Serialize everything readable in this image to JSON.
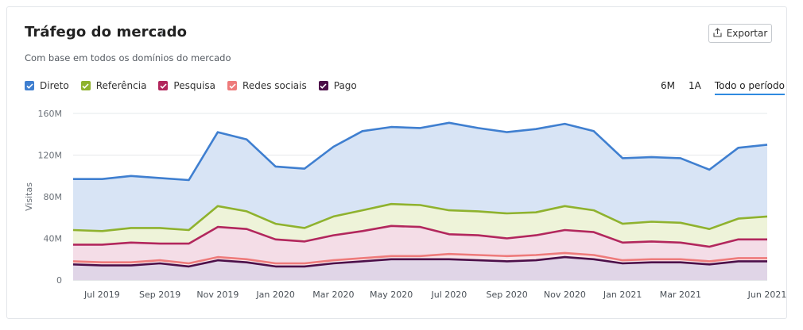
{
  "header": {
    "title": "Tráfego do mercado",
    "info_icon": "i",
    "subtitle": "Com base em todos os domínios do mercado",
    "export_label": "Exportar"
  },
  "legend": [
    {
      "label": "Direto",
      "color": "#3f7fd0"
    },
    {
      "label": "Referência",
      "color": "#8fb22e"
    },
    {
      "label": "Pesquisa",
      "color": "#b2275d"
    },
    {
      "label": "Redes sociais",
      "color": "#ee7b7b"
    },
    {
      "label": "Pago",
      "color": "#4c0f49"
    }
  ],
  "periods": {
    "p6m": "6M",
    "p1a": "1A",
    "all": "Todo o período"
  },
  "chart_data": {
    "type": "area",
    "ylabel": "Visitas",
    "ylim": [
      0,
      160000000
    ],
    "yticks": [
      0,
      40000000,
      80000000,
      120000000,
      160000000
    ],
    "ytick_labels": [
      "0",
      "40M",
      "80M",
      "120M",
      "160M"
    ],
    "x": [
      "2019-06",
      "2019-07",
      "2019-08",
      "2019-09",
      "2019-10",
      "2019-11",
      "2019-12",
      "2020-01",
      "2020-02",
      "2020-03",
      "2020-04",
      "2020-05",
      "2020-06",
      "2020-07",
      "2020-08",
      "2020-09",
      "2020-10",
      "2020-11",
      "2020-12",
      "2021-01",
      "2021-02",
      "2021-03",
      "2021-04",
      "2021-05",
      "2021-06"
    ],
    "xtick_labels": [
      {
        "x": "2019-07",
        "label": "Jul 2019"
      },
      {
        "x": "2019-09",
        "label": "Sep 2019"
      },
      {
        "x": "2019-11",
        "label": "Nov 2019"
      },
      {
        "x": "2020-01",
        "label": "Jan 2020"
      },
      {
        "x": "2020-03",
        "label": "Mar 2020"
      },
      {
        "x": "2020-05",
        "label": "May 2020"
      },
      {
        "x": "2020-07",
        "label": "Jul 2020"
      },
      {
        "x": "2020-09",
        "label": "Sep 2020"
      },
      {
        "x": "2020-11",
        "label": "Nov 2020"
      },
      {
        "x": "2021-01",
        "label": "Jan 2021"
      },
      {
        "x": "2021-03",
        "label": "Mar 2021"
      },
      {
        "x": "2021-06",
        "label": "Jun 2021"
      }
    ],
    "series": [
      {
        "name": "Direto",
        "color": "#3f7fd0",
        "fill": "#d8e4f5",
        "values": [
          97,
          97,
          100,
          98,
          96,
          142,
          135,
          109,
          107,
          128,
          143,
          147,
          146,
          151,
          146,
          142,
          145,
          150,
          143,
          117,
          118,
          117,
          106,
          127,
          130
        ]
      },
      {
        "name": "Referência",
        "color": "#8fb22e",
        "fill": "#eef3d9",
        "values": [
          48,
          47,
          50,
          50,
          48,
          71,
          66,
          54,
          50,
          61,
          67,
          73,
          72,
          67,
          66,
          64,
          65,
          71,
          67,
          54,
          56,
          55,
          49,
          59,
          61
        ]
      },
      {
        "name": "Pesquisa",
        "color": "#b2275d",
        "fill": "#f4dde7",
        "values": [
          34,
          34,
          36,
          35,
          35,
          51,
          49,
          39,
          37,
          43,
          47,
          52,
          51,
          44,
          43,
          40,
          43,
          48,
          46,
          36,
          37,
          36,
          32,
          39,
          39
        ]
      },
      {
        "name": "Redes sociais",
        "color": "#ee7b7b",
        "fill": "#f8e3e8",
        "values": [
          18,
          17,
          17,
          19,
          16,
          22,
          20,
          16,
          16,
          19,
          21,
          23,
          23,
          25,
          24,
          23,
          24,
          26,
          24,
          19,
          20,
          20,
          18,
          21,
          21
        ]
      },
      {
        "name": "Pago",
        "color": "#4c0f49",
        "fill": "#e0d5e7",
        "values": [
          15,
          14,
          14,
          16,
          13,
          19,
          17,
          13,
          13,
          16,
          18,
          20,
          20,
          20,
          19,
          18,
          19,
          22,
          20,
          16,
          17,
          17,
          15,
          18,
          18
        ]
      }
    ]
  }
}
